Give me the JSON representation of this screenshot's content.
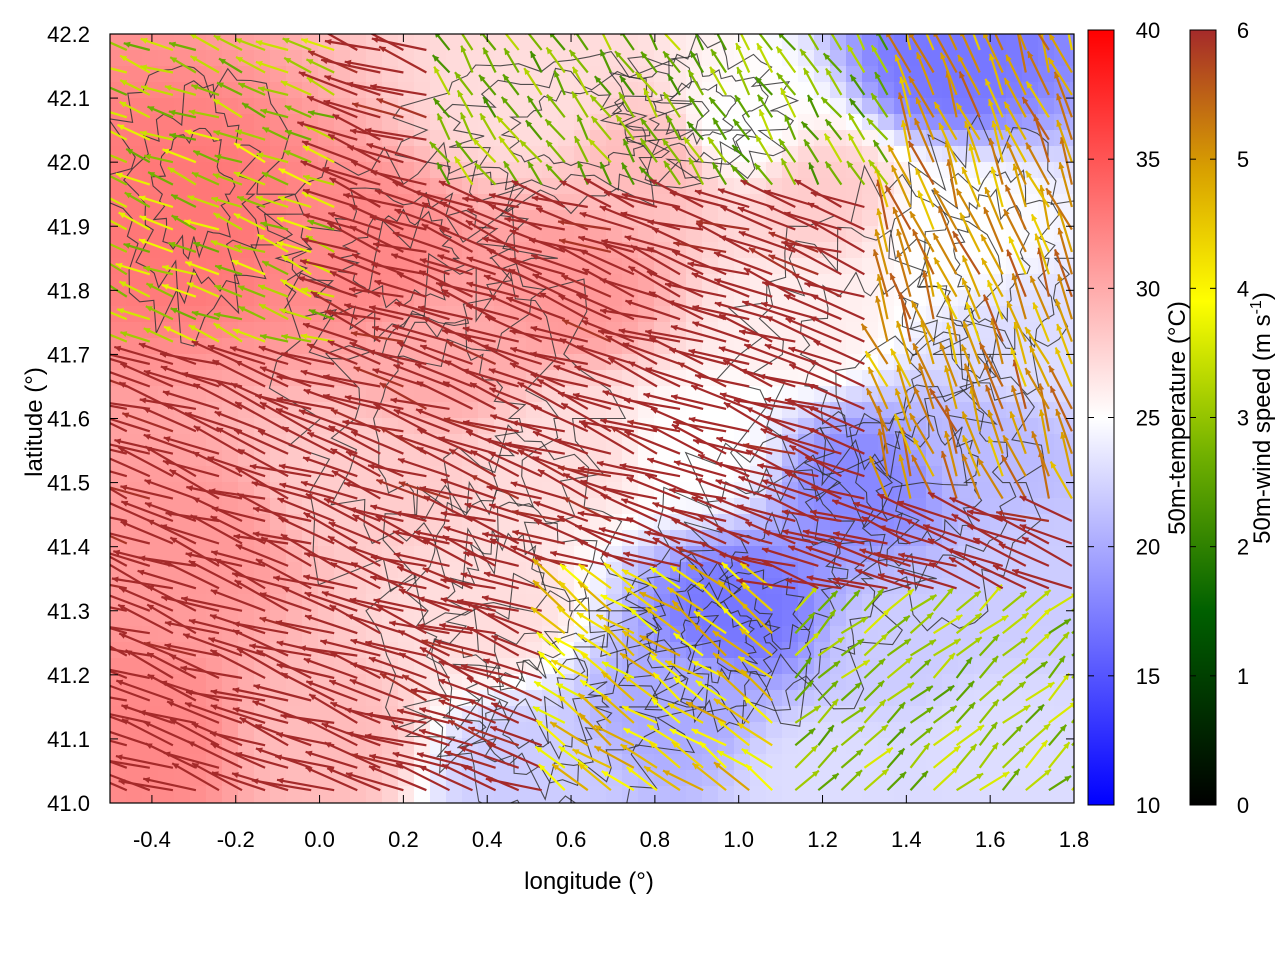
{
  "chart_data": {
    "type": "heatmap",
    "xlabel": "longitude (°)",
    "ylabel": "latitude (°)",
    "xlim": [
      -0.5,
      1.8
    ],
    "ylim": [
      41.0,
      42.2
    ],
    "x_ticks": [
      "-0.4",
      "-0.2",
      "0.0",
      "0.2",
      "0.4",
      "0.6",
      "0.8",
      "1.0",
      "1.2",
      "1.4",
      "1.6",
      "1.8"
    ],
    "y_ticks": [
      "41.0",
      "41.1",
      "41.2",
      "41.3",
      "41.4",
      "41.5",
      "41.6",
      "41.7",
      "41.8",
      "41.9",
      "42.0",
      "42.1",
      "42.2"
    ],
    "temperature_colorbar": {
      "label": "50m-temperature (°C)",
      "range": [
        10,
        40
      ],
      "ticks": [
        "10",
        "15",
        "20",
        "25",
        "30",
        "35",
        "40"
      ],
      "colors": [
        "#0000ff",
        "#ffffff",
        "#ff0000"
      ]
    },
    "wind_colorbar": {
      "label_main": "50m-wind speed (m s",
      "label_sup": "-1",
      "label_end": ")",
      "range": [
        0,
        6
      ],
      "ticks": [
        "0",
        "1",
        "2",
        "3",
        "4",
        "5",
        "6"
      ],
      "colors": [
        "#000000",
        "#007000",
        "#8cc000",
        "#ffff00",
        "#d8a000",
        "#a52a2a"
      ]
    },
    "temperature_zones": [
      {
        "lon": -0.3,
        "lat": 41.9,
        "t": 33
      },
      {
        "lon": 0.1,
        "lat": 41.85,
        "t": 32
      },
      {
        "lon": 0.6,
        "lat": 41.8,
        "t": 31
      },
      {
        "lon": 0.8,
        "lat": 42.0,
        "t": 29
      },
      {
        "lon": 0.5,
        "lat": 42.1,
        "t": 27
      },
      {
        "lon": 1.0,
        "lat": 42.05,
        "t": 25
      },
      {
        "lon": 1.5,
        "lat": 42.15,
        "t": 17
      },
      {
        "lon": 1.5,
        "lat": 41.9,
        "t": 25
      },
      {
        "lon": 1.7,
        "lat": 41.7,
        "t": 23
      },
      {
        "lon": 1.3,
        "lat": 41.5,
        "t": 18
      },
      {
        "lon": 1.6,
        "lat": 41.55,
        "t": 21
      },
      {
        "lon": 1.0,
        "lat": 41.3,
        "t": 17
      },
      {
        "lon": 0.85,
        "lat": 41.15,
        "t": 20
      },
      {
        "lon": 1.4,
        "lat": 41.25,
        "t": 22
      },
      {
        "lon": 1.6,
        "lat": 41.1,
        "t": 23
      },
      {
        "lon": 1.2,
        "lat": 41.05,
        "t": 23
      },
      {
        "lon": 0.5,
        "lat": 41.05,
        "t": 22
      },
      {
        "lon": 0.4,
        "lat": 41.3,
        "t": 27
      },
      {
        "lon": 0.1,
        "lat": 41.5,
        "t": 28
      },
      {
        "lon": -0.3,
        "lat": 41.4,
        "t": 31
      },
      {
        "lon": -0.4,
        "lat": 41.1,
        "t": 32
      },
      {
        "lon": 0.0,
        "lat": 41.1,
        "t": 29
      },
      {
        "lon": 0.6,
        "lat": 41.55,
        "t": 27
      },
      {
        "lon": 0.3,
        "lat": 41.7,
        "t": 30
      },
      {
        "lon": 1.15,
        "lat": 41.75,
        "t": 26
      },
      {
        "lon": 0.9,
        "lat": 41.55,
        "t": 25
      },
      {
        "lon": 1.7,
        "lat": 41.35,
        "t": 22
      },
      {
        "lon": 1.2,
        "lat": 41.95,
        "t": 28
      }
    ]
  }
}
